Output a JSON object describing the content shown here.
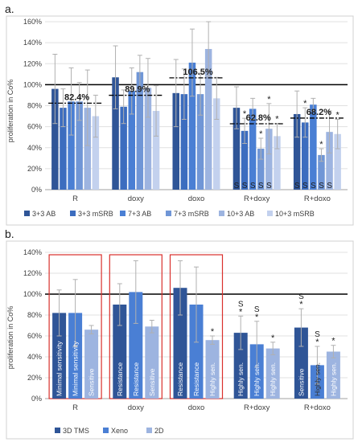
{
  "panels": [
    {
      "label": "a.",
      "ylabel": "proliferation in Co%",
      "yticks": [
        "0%",
        "20%",
        "40%",
        "60%",
        "80%",
        "100%",
        "120%",
        "140%",
        "160%"
      ],
      "ymax": 160,
      "reference": 100,
      "chart_data": {
        "type": "bar",
        "categories": [
          "R",
          "doxy",
          "doxo",
          "R+doxy",
          "R+doxo"
        ],
        "ylim": [
          0,
          160
        ],
        "series": [
          {
            "name": "3+3 AB",
            "color": "#2f5597",
            "values": [
              96,
              107,
              92,
              78,
              72
            ],
            "err": [
              33,
              30,
              32,
              20,
              22
            ],
            "star": [
              false,
              false,
              false,
              false,
              false
            ],
            "sig": [
              false,
              false,
              false,
              true,
              true
            ]
          },
          {
            "name": "3+3 mSRB",
            "color": "#3c6dbf",
            "values": [
              78,
              79,
              91,
              56,
              64
            ],
            "err": [
              18,
              16,
              24,
              12,
              14
            ],
            "star": [
              false,
              false,
              false,
              true,
              true
            ],
            "sig": [
              false,
              false,
              false,
              true,
              true
            ]
          },
          {
            "name": "7+3 AB",
            "color": "#4a7fd4",
            "values": [
              84,
              94,
              121,
              77,
              81
            ],
            "err": [
              32,
              22,
              32,
              10,
              6
            ],
            "star": [
              false,
              false,
              false,
              false,
              false
            ],
            "sig": [
              false,
              false,
              false,
              true,
              true
            ]
          },
          {
            "name": "7+3 mSRB",
            "color": "#7096d6",
            "values": [
              84,
              112,
              91,
              39,
              33
            ],
            "err": [
              18,
              16,
              20,
              10,
              6
            ],
            "star": [
              false,
              false,
              false,
              true,
              true
            ],
            "sig": [
              false,
              false,
              false,
              true,
              true
            ]
          },
          {
            "name": "10+3 AB",
            "color": "#9db4e0",
            "values": [
              78,
              97,
              134,
              58,
              55
            ],
            "err": [
              36,
              28,
              26,
              24,
              20
            ],
            "star": [
              false,
              false,
              false,
              true,
              false
            ],
            "sig": [
              false,
              false,
              false,
              true,
              true
            ]
          },
          {
            "name": "10+3 mSRB",
            "color": "#c3d1ee",
            "values": [
              70,
              75,
              87,
              51,
              53
            ],
            "err": [
              20,
              24,
              20,
              12,
              14
            ],
            "star": [
              false,
              false,
              false,
              true,
              true
            ],
            "sig": [
              false,
              false,
              false,
              false,
              false
            ]
          }
        ],
        "averages": [
          {
            "text": "82.4%",
            "value": 82.4
          },
          {
            "text": "89.9%",
            "value": 89.9
          },
          {
            "text": "106.5%",
            "value": 106.5
          },
          {
            "text": "62.8%",
            "value": 62.8
          },
          {
            "text": "68.2%",
            "value": 68.2
          }
        ],
        "sig_symbol": "S",
        "star_symbol": "*"
      }
    },
    {
      "label": "b.",
      "ylabel": "proliferation in Co%",
      "yticks": [
        "0%",
        "20%",
        "40%",
        "60%",
        "80%",
        "100%",
        "120%",
        "140%"
      ],
      "ymax": 140,
      "reference": 100,
      "chart_data": {
        "type": "bar",
        "categories": [
          "R",
          "doxy",
          "doxo",
          "R+doxy",
          "R+doxo"
        ],
        "ylim": [
          0,
          140
        ],
        "series": [
          {
            "name": "3D TMS",
            "color": "#2f5597",
            "values": [
              82,
              90,
              106,
              63,
              68
            ],
            "err": [
              22,
              20,
              26,
              16,
              18
            ],
            "star": [
              false,
              false,
              false,
              true,
              true
            ],
            "sig": [
              false,
              false,
              false,
              true,
              true
            ]
          },
          {
            "name": "Xeno",
            "color": "#4a7fd4",
            "values": [
              82,
              102,
              90,
              52,
              32
            ],
            "err": [
              32,
              30,
              36,
              22,
              18
            ],
            "star": [
              false,
              false,
              false,
              true,
              true
            ],
            "sig": [
              false,
              false,
              false,
              true,
              true
            ]
          },
          {
            "name": "2D",
            "color": "#9db4e0",
            "values": [
              66,
              69,
              56,
              48,
              45
            ],
            "err": [
              4,
              6,
              4,
              6,
              6
            ],
            "star": [
              false,
              false,
              true,
              true,
              true
            ],
            "sig": [
              false,
              false,
              false,
              false,
              false
            ]
          }
        ],
        "bar_labels": [
          [
            "Minimal sensitivity",
            "Minimal sensitivity",
            "Sensitive"
          ],
          [
            "Resistance",
            "Resistance",
            "Sensitive"
          ],
          [
            "Resistance",
            "Resistance",
            "Highly sen."
          ],
          [
            "Highly sen.",
            "Highly sen.",
            "Highly sen."
          ],
          [
            "Sensitive",
            "Highly sen.",
            "Highly sen."
          ]
        ],
        "boxed_groups": [
          0,
          1,
          2
        ],
        "box_color": "#d9302c",
        "sig_symbol": "S",
        "star_symbol": "*"
      }
    }
  ]
}
